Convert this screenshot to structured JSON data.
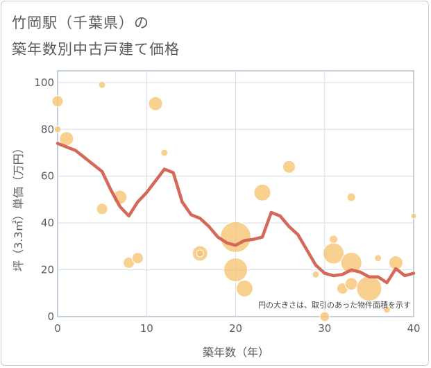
{
  "title_line1": "竹岡駅（千葉県）の",
  "title_line2": "築年数別中古戸建て価格",
  "chart_data": {
    "type": "scatter",
    "title": "竹岡駅（千葉県）の築年数別中古戸建て価格",
    "xlabel": "築年数（年）",
    "ylabel": "坪（3.3㎡）単価（万円）",
    "xlim": [
      0,
      40
    ],
    "ylim": [
      0,
      105
    ],
    "xticks": [
      0,
      10,
      20,
      30,
      40
    ],
    "yticks": [
      0,
      20,
      40,
      60,
      80,
      100
    ],
    "grid": true,
    "note": "円の大きさは、取引のあった物件面積を示す",
    "bubble_color": "#f5c26b",
    "line_color": "#d4695a",
    "bubbles": [
      {
        "x": 0,
        "y": 92,
        "size": 8
      },
      {
        "x": 0,
        "y": 80,
        "size": 5
      },
      {
        "x": 1,
        "y": 76,
        "size": 10
      },
      {
        "x": 5,
        "y": 99,
        "size": 5
      },
      {
        "x": 5,
        "y": 46,
        "size": 8
      },
      {
        "x": 7,
        "y": 51,
        "size": 10
      },
      {
        "x": 8,
        "y": 23,
        "size": 8
      },
      {
        "x": 9,
        "y": 25,
        "size": 8
      },
      {
        "x": 11,
        "y": 91,
        "size": 10
      },
      {
        "x": 12,
        "y": 70,
        "size": 5
      },
      {
        "x": 16,
        "y": 27,
        "size": 11
      },
      {
        "x": 16,
        "y": 27,
        "size": 5
      },
      {
        "x": 20,
        "y": 34,
        "size": 22
      },
      {
        "x": 20,
        "y": 20,
        "size": 17
      },
      {
        "x": 21,
        "y": 12,
        "size": 12
      },
      {
        "x": 23,
        "y": 53,
        "size": 12
      },
      {
        "x": 26,
        "y": 64,
        "size": 9
      },
      {
        "x": 29,
        "y": 18,
        "size": 5
      },
      {
        "x": 30,
        "y": 0,
        "size": 7
      },
      {
        "x": 31,
        "y": 33,
        "size": 6
      },
      {
        "x": 31,
        "y": 27,
        "size": 15
      },
      {
        "x": 32,
        "y": 12,
        "size": 8
      },
      {
        "x": 33,
        "y": 51,
        "size": 6
      },
      {
        "x": 33,
        "y": 23,
        "size": 15
      },
      {
        "x": 33,
        "y": 14,
        "size": 9
      },
      {
        "x": 35,
        "y": 12,
        "size": 18
      },
      {
        "x": 36,
        "y": 25,
        "size": 5
      },
      {
        "x": 37,
        "y": 3,
        "size": 5
      },
      {
        "x": 38,
        "y": 23,
        "size": 10
      },
      {
        "x": 40,
        "y": 43,
        "size": 4
      }
    ],
    "trend_line": {
      "x": [
        0,
        1,
        2,
        3,
        4,
        5,
        6,
        7,
        8,
        9,
        10,
        11,
        12,
        13,
        14,
        15,
        16,
        17,
        18,
        19,
        20,
        21,
        22,
        23,
        24,
        25,
        26,
        27,
        28,
        29,
        30,
        31,
        32,
        33,
        34,
        35,
        36,
        37,
        38,
        39,
        40
      ],
      "y": [
        74,
        72.5,
        71,
        68,
        65,
        62,
        54,
        47,
        43,
        49,
        53,
        58,
        63,
        61.5,
        49,
        43.5,
        42,
        38.5,
        34,
        31.5,
        30.5,
        32.5,
        33,
        34,
        44.5,
        43,
        38.5,
        35,
        28.5,
        22,
        18.5,
        17.5,
        18,
        20,
        19,
        17,
        17,
        14.5,
        20.5,
        17.5,
        18.5
      ]
    }
  }
}
